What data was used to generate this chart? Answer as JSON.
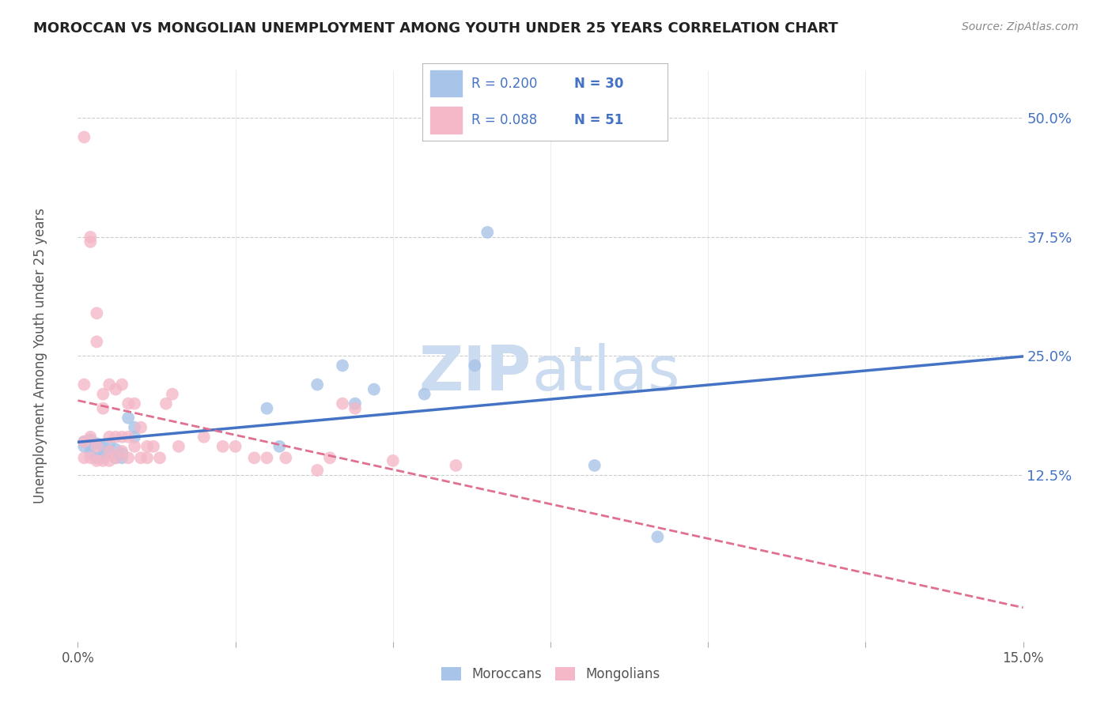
{
  "title": "MOROCCAN VS MONGOLIAN UNEMPLOYMENT AMONG YOUTH UNDER 25 YEARS CORRELATION CHART",
  "source": "Source: ZipAtlas.com",
  "ylabel": "Unemployment Among Youth under 25 years",
  "ytick_vals": [
    0.125,
    0.25,
    0.375,
    0.5
  ],
  "ytick_labels": [
    "12.5%",
    "25.0%",
    "37.5%",
    "50.0%"
  ],
  "moroccan_color": "#a8c4e8",
  "mongolian_color": "#f4b8c8",
  "moroccan_line_color": "#4472c4",
  "mongolian_line_color": "#e07090",
  "legend_moroccan_r": "R = 0.200",
  "legend_moroccan_n": "N = 30",
  "legend_mongolian_r": "R = 0.088",
  "legend_mongolian_n": "N = 51",
  "label_color": "#4472c4",
  "text_color": "#555555",
  "moroccan_x": [
    0.001,
    0.001,
    0.002,
    0.002,
    0.002,
    0.003,
    0.003,
    0.004,
    0.004,
    0.004,
    0.005,
    0.005,
    0.006,
    0.006,
    0.007,
    0.007,
    0.008,
    0.009,
    0.009,
    0.03,
    0.032,
    0.038,
    0.042,
    0.044,
    0.047,
    0.055,
    0.063,
    0.065,
    0.082,
    0.092
  ],
  "moroccan_y": [
    0.16,
    0.155,
    0.162,
    0.155,
    0.148,
    0.158,
    0.143,
    0.155,
    0.148,
    0.143,
    0.158,
    0.148,
    0.152,
    0.143,
    0.148,
    0.143,
    0.185,
    0.175,
    0.165,
    0.195,
    0.155,
    0.22,
    0.24,
    0.2,
    0.215,
    0.21,
    0.24,
    0.38,
    0.135,
    0.06
  ],
  "mongolian_x": [
    0.001,
    0.001,
    0.001,
    0.001,
    0.002,
    0.002,
    0.002,
    0.002,
    0.003,
    0.003,
    0.003,
    0.003,
    0.004,
    0.004,
    0.004,
    0.005,
    0.005,
    0.005,
    0.005,
    0.006,
    0.006,
    0.006,
    0.007,
    0.007,
    0.007,
    0.008,
    0.008,
    0.008,
    0.009,
    0.009,
    0.01,
    0.01,
    0.011,
    0.011,
    0.012,
    0.013,
    0.014,
    0.015,
    0.016,
    0.02,
    0.023,
    0.025,
    0.028,
    0.03,
    0.033,
    0.038,
    0.04,
    0.042,
    0.044,
    0.05,
    0.06
  ],
  "mongolian_y": [
    0.48,
    0.22,
    0.16,
    0.143,
    0.375,
    0.37,
    0.165,
    0.143,
    0.295,
    0.265,
    0.155,
    0.14,
    0.21,
    0.195,
    0.14,
    0.22,
    0.165,
    0.15,
    0.14,
    0.215,
    0.165,
    0.143,
    0.22,
    0.165,
    0.15,
    0.2,
    0.165,
    0.143,
    0.2,
    0.155,
    0.175,
    0.143,
    0.155,
    0.143,
    0.155,
    0.143,
    0.2,
    0.21,
    0.155,
    0.165,
    0.155,
    0.155,
    0.143,
    0.143,
    0.143,
    0.13,
    0.143,
    0.2,
    0.195,
    0.14,
    0.135
  ],
  "xlim": [
    0.0,
    0.15
  ],
  "ylim": [
    -0.05,
    0.55
  ],
  "watermark_zip_color": "#ccdcf0",
  "watermark_atlas_color": "#ccdcf0",
  "grid_color": "#cccccc"
}
